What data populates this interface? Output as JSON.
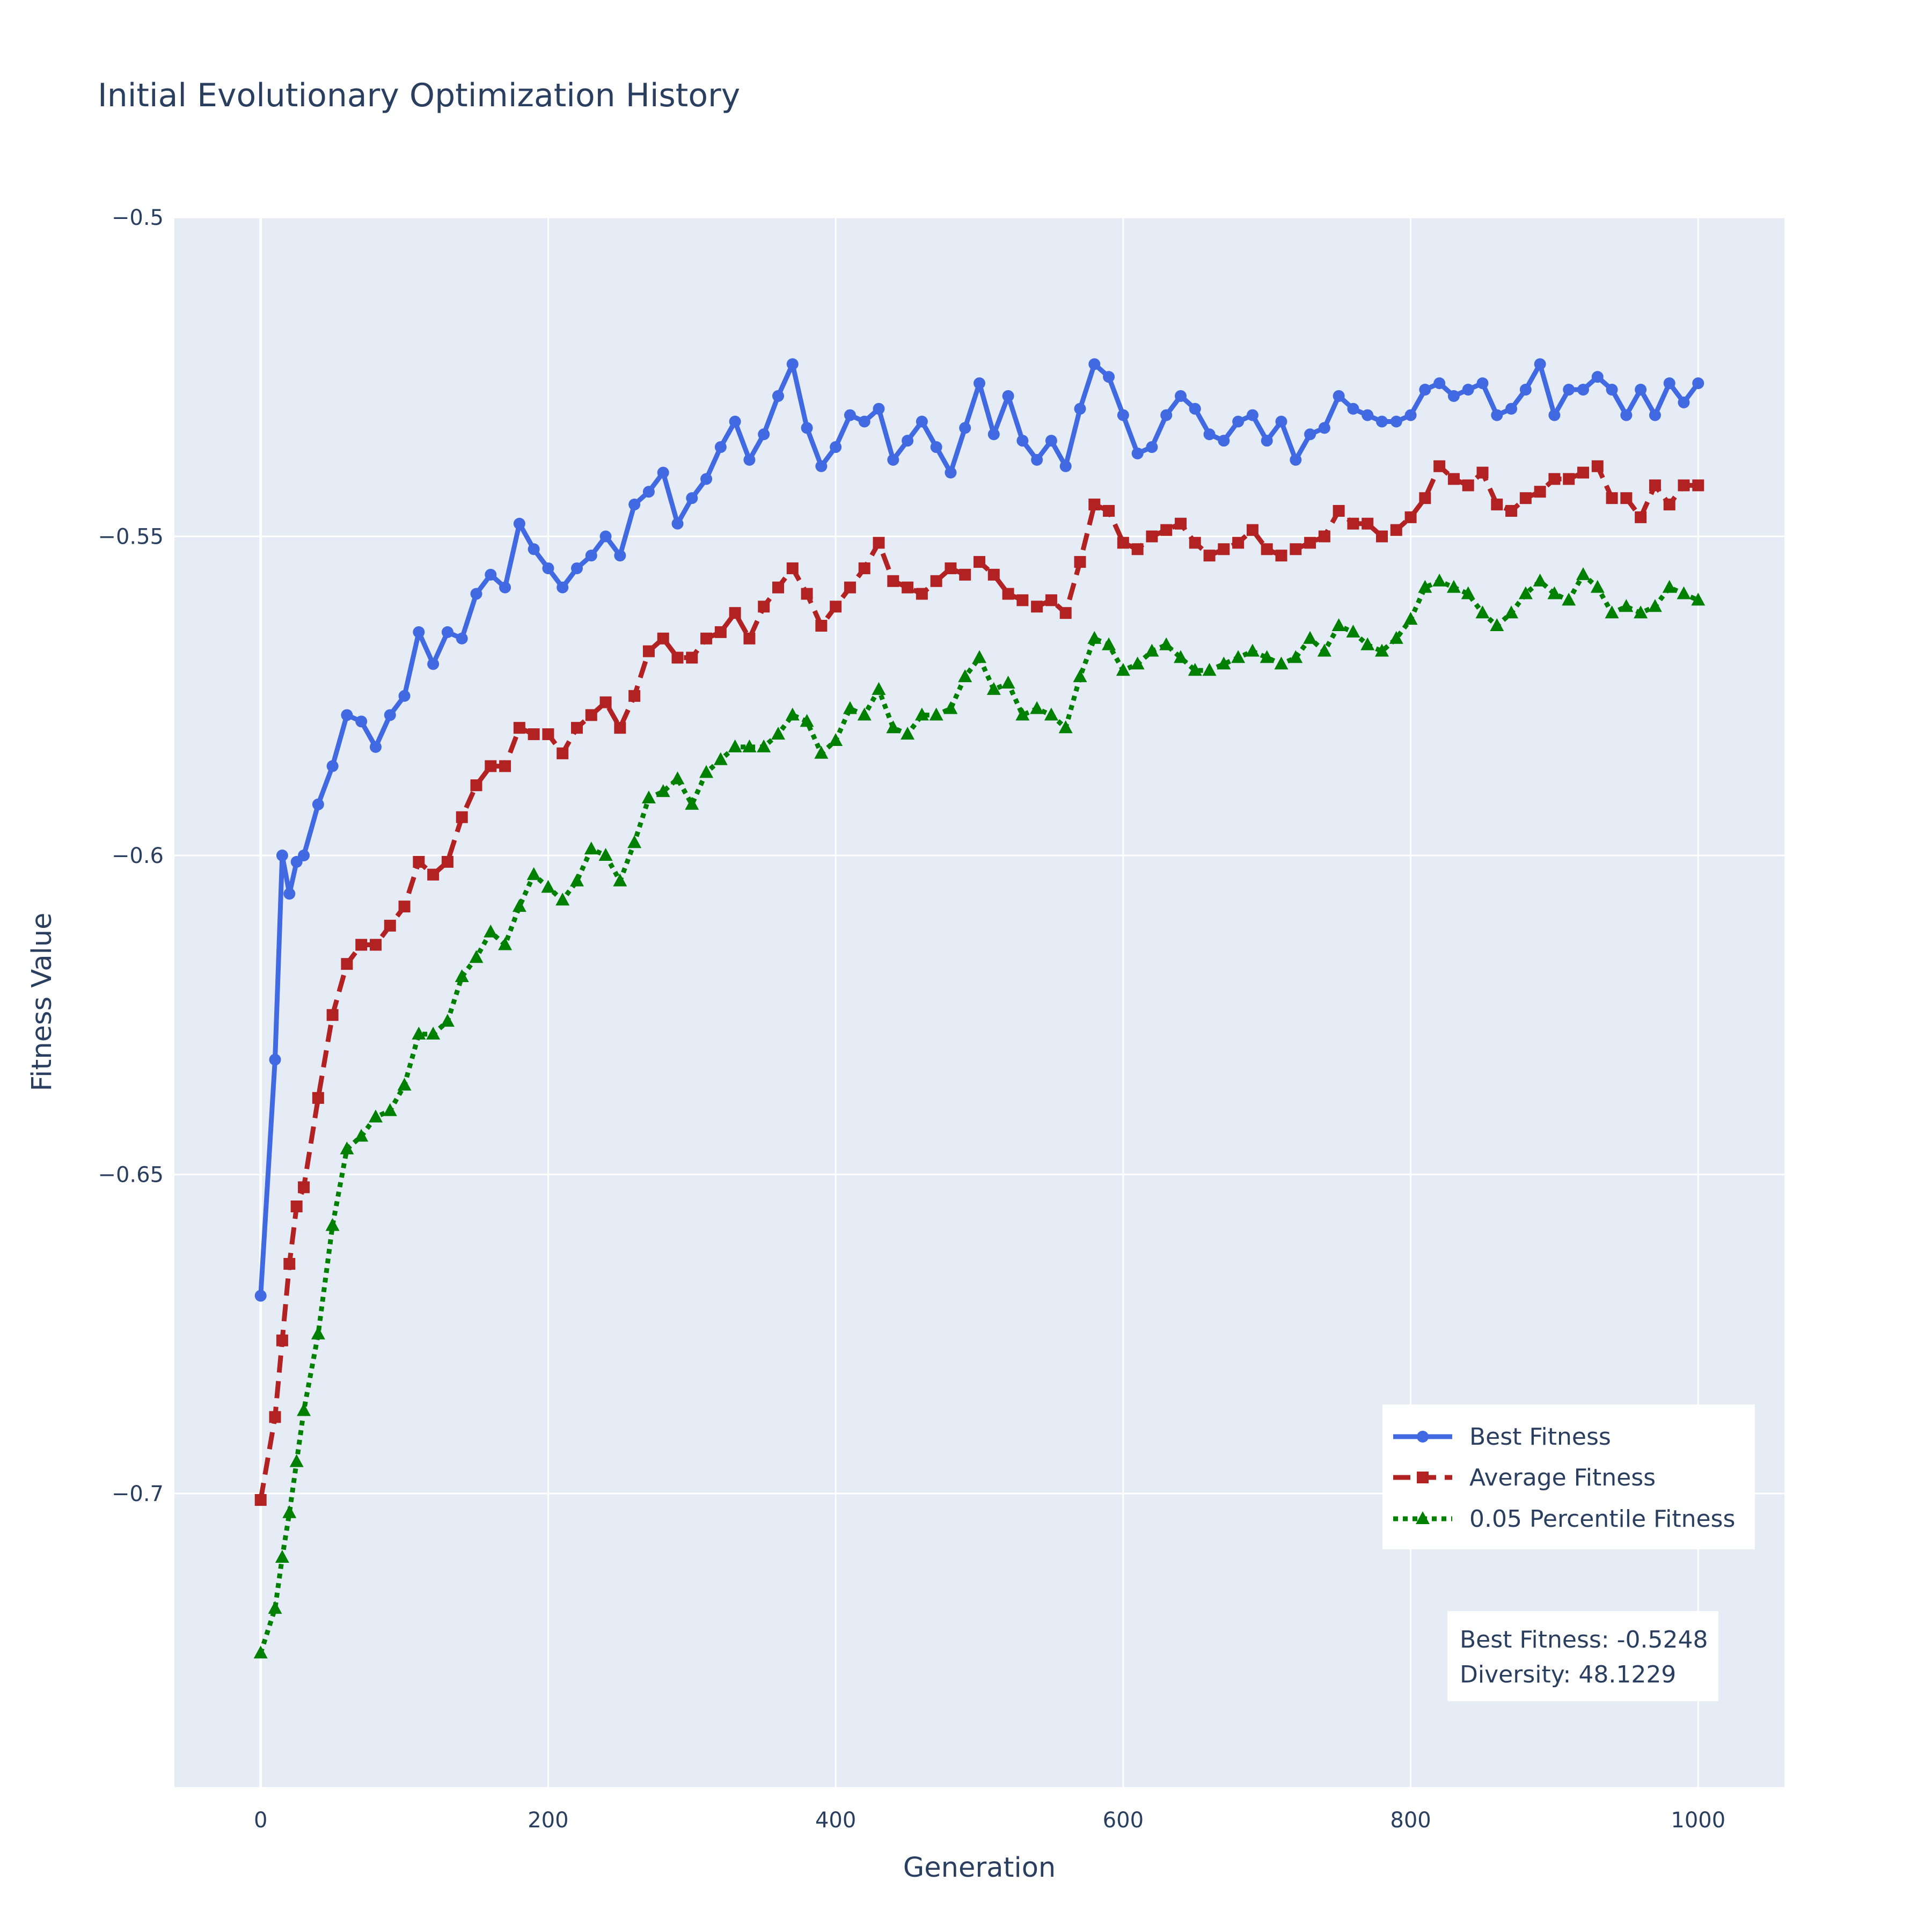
{
  "chart_data": {
    "type": "line",
    "title": "Initial Evolutionary Optimization History",
    "xlabel": "Generation",
    "ylabel": "Fitness Value",
    "xlim": [
      -60,
      1060
    ],
    "ylim": [
      -0.746,
      -0.5
    ],
    "x_ticks": [
      0,
      200,
      400,
      600,
      800,
      1000
    ],
    "x_tick_labels": [
      "0",
      "200",
      "400",
      "600",
      "800",
      "1000"
    ],
    "y_ticks": [
      -0.5,
      -0.55,
      -0.6,
      -0.65,
      -0.7
    ],
    "y_tick_labels": [
      "−0.5",
      "−0.55",
      "−0.6",
      "−0.65",
      "−0.7"
    ],
    "grid": true,
    "legend_position": "bottom-right",
    "series": [
      {
        "name": "Best Fitness",
        "color": "#4169e1",
        "line": "solid",
        "marker": "circle",
        "x": [
          0,
          10,
          15,
          20,
          25,
          30,
          40,
          50,
          60,
          70,
          80,
          90,
          100,
          110,
          120,
          130,
          140,
          150,
          160,
          170,
          180,
          190,
          200,
          210,
          220,
          230,
          240,
          250,
          260,
          270,
          280,
          290,
          300,
          310,
          320,
          330,
          340,
          350,
          360,
          370,
          380,
          390,
          400,
          410,
          420,
          430,
          440,
          450,
          460,
          470,
          480,
          490,
          500,
          510,
          520,
          530,
          540,
          550,
          560,
          570,
          580,
          590,
          600,
          610,
          620,
          630,
          640,
          650,
          660,
          670,
          680,
          690,
          700,
          710,
          720,
          730,
          740,
          750,
          760,
          770,
          780,
          790,
          800,
          810,
          820,
          830,
          840,
          850,
          860,
          870,
          880,
          890,
          900,
          910,
          920,
          930,
          940,
          950,
          960,
          970,
          980,
          990,
          1000
        ],
        "y": [
          -0.669,
          -0.632,
          -0.6,
          -0.606,
          -0.601,
          -0.6,
          -0.592,
          -0.586,
          -0.578,
          -0.579,
          -0.583,
          -0.578,
          -0.575,
          -0.565,
          -0.57,
          -0.565,
          -0.566,
          -0.559,
          -0.556,
          -0.558,
          -0.548,
          -0.552,
          -0.555,
          -0.558,
          -0.555,
          -0.553,
          -0.55,
          -0.553,
          -0.545,
          -0.543,
          -0.54,
          -0.548,
          -0.544,
          -0.541,
          -0.536,
          -0.532,
          -0.538,
          -0.534,
          -0.528,
          -0.523,
          -0.533,
          -0.539,
          -0.536,
          -0.531,
          -0.532,
          -0.53,
          -0.538,
          -0.535,
          -0.532,
          -0.536,
          -0.54,
          -0.533,
          -0.526,
          -0.534,
          -0.528,
          -0.535,
          -0.538,
          -0.535,
          -0.539,
          -0.53,
          -0.523,
          -0.525,
          -0.531,
          -0.537,
          -0.536,
          -0.531,
          -0.528,
          -0.53,
          -0.534,
          -0.535,
          -0.532,
          -0.531,
          -0.535,
          -0.532,
          -0.538,
          -0.534,
          -0.533,
          -0.528,
          -0.53,
          -0.531,
          -0.532,
          -0.532,
          -0.531,
          -0.527,
          -0.526,
          -0.528,
          -0.527,
          -0.526,
          -0.531,
          -0.53,
          -0.527,
          -0.523,
          -0.531,
          -0.527,
          -0.527,
          -0.525,
          -0.527,
          -0.531,
          -0.527,
          -0.531,
          -0.526,
          -0.529,
          -0.526
        ]
      },
      {
        "name": "Average Fitness",
        "color": "#b22222",
        "line": "dash",
        "marker": "square",
        "x": [
          0,
          10,
          15,
          20,
          25,
          30,
          40,
          50,
          60,
          70,
          80,
          90,
          100,
          110,
          120,
          130,
          140,
          150,
          160,
          170,
          180,
          190,
          200,
          210,
          220,
          230,
          240,
          250,
          260,
          270,
          280,
          290,
          300,
          310,
          320,
          330,
          340,
          350,
          360,
          370,
          380,
          390,
          400,
          410,
          420,
          430,
          440,
          450,
          460,
          470,
          480,
          490,
          500,
          510,
          520,
          530,
          540,
          550,
          560,
          570,
          580,
          590,
          600,
          610,
          620,
          630,
          640,
          650,
          660,
          670,
          680,
          690,
          700,
          710,
          720,
          730,
          740,
          750,
          760,
          770,
          780,
          790,
          800,
          810,
          820,
          830,
          840,
          850,
          860,
          870,
          880,
          890,
          900,
          910,
          920,
          930,
          940,
          950,
          960,
          970,
          980,
          990,
          1000
        ],
        "y": [
          -0.701,
          -0.688,
          -0.676,
          -0.664,
          -0.655,
          -0.652,
          -0.638,
          -0.625,
          -0.617,
          -0.614,
          -0.614,
          -0.611,
          -0.608,
          -0.601,
          -0.603,
          -0.601,
          -0.594,
          -0.589,
          -0.586,
          -0.586,
          -0.58,
          -0.581,
          -0.581,
          -0.584,
          -0.58,
          -0.578,
          -0.576,
          -0.58,
          -0.575,
          -0.568,
          -0.566,
          -0.569,
          -0.569,
          -0.566,
          -0.565,
          -0.562,
          -0.566,
          -0.561,
          -0.558,
          -0.555,
          -0.559,
          -0.564,
          -0.561,
          -0.558,
          -0.555,
          -0.551,
          -0.557,
          -0.558,
          -0.559,
          -0.557,
          -0.555,
          -0.556,
          -0.554,
          -0.556,
          -0.559,
          -0.56,
          -0.561,
          -0.56,
          -0.562,
          -0.554,
          -0.545,
          -0.546,
          -0.551,
          -0.552,
          -0.55,
          -0.549,
          -0.548,
          -0.551,
          -0.553,
          -0.552,
          -0.551,
          -0.549,
          -0.552,
          -0.553,
          -0.552,
          -0.551,
          -0.55,
          -0.546,
          -0.548,
          -0.548,
          -0.55,
          -0.549,
          -0.547,
          -0.544,
          -0.539,
          -0.541,
          -0.542,
          -0.54,
          -0.545,
          -0.546,
          -0.544,
          -0.543,
          -0.541,
          -0.541,
          -0.54,
          -0.539,
          -0.544,
          -0.544,
          -0.547,
          -0.542,
          -0.545,
          -0.542,
          -0.542
        ]
      },
      {
        "name": "0.05 Percentile Fitness",
        "color": "#008000",
        "line": "dot",
        "marker": "triangle-up",
        "x": [
          0,
          10,
          15,
          20,
          25,
          30,
          40,
          50,
          60,
          70,
          80,
          90,
          100,
          110,
          120,
          130,
          140,
          150,
          160,
          170,
          180,
          190,
          200,
          210,
          220,
          230,
          240,
          250,
          260,
          270,
          280,
          290,
          300,
          310,
          320,
          330,
          340,
          350,
          360,
          370,
          380,
          390,
          400,
          410,
          420,
          430,
          440,
          450,
          460,
          470,
          480,
          490,
          500,
          510,
          520,
          530,
          540,
          550,
          560,
          570,
          580,
          590,
          600,
          610,
          620,
          630,
          640,
          650,
          660,
          670,
          680,
          690,
          700,
          710,
          720,
          730,
          740,
          750,
          760,
          770,
          780,
          790,
          800,
          810,
          820,
          830,
          840,
          850,
          860,
          870,
          880,
          890,
          900,
          910,
          920,
          930,
          940,
          950,
          960,
          970,
          980,
          990,
          1000
        ],
        "y": [
          -0.725,
          -0.718,
          -0.71,
          -0.703,
          -0.695,
          -0.687,
          -0.675,
          -0.658,
          -0.646,
          -0.644,
          -0.641,
          -0.64,
          -0.636,
          -0.628,
          -0.628,
          -0.626,
          -0.619,
          -0.616,
          -0.612,
          -0.614,
          -0.608,
          -0.603,
          -0.605,
          -0.607,
          -0.604,
          -0.599,
          -0.6,
          -0.604,
          -0.598,
          -0.591,
          -0.59,
          -0.588,
          -0.592,
          -0.587,
          -0.585,
          -0.583,
          -0.583,
          -0.583,
          -0.581,
          -0.578,
          -0.579,
          -0.584,
          -0.582,
          -0.577,
          -0.578,
          -0.574,
          -0.58,
          -0.581,
          -0.578,
          -0.578,
          -0.577,
          -0.572,
          -0.569,
          -0.574,
          -0.573,
          -0.578,
          -0.577,
          -0.578,
          -0.58,
          -0.572,
          -0.566,
          -0.567,
          -0.571,
          -0.57,
          -0.568,
          -0.567,
          -0.569,
          -0.571,
          -0.571,
          -0.57,
          -0.569,
          -0.568,
          -0.569,
          -0.57,
          -0.569,
          -0.566,
          -0.568,
          -0.564,
          -0.565,
          -0.567,
          -0.568,
          -0.566,
          -0.563,
          -0.558,
          -0.557,
          -0.558,
          -0.559,
          -0.562,
          -0.564,
          -0.562,
          -0.559,
          -0.557,
          -0.559,
          -0.56,
          -0.556,
          -0.558,
          -0.562,
          -0.561,
          -0.562,
          -0.561,
          -0.558,
          -0.559,
          -0.56
        ]
      }
    ],
    "annotation": {
      "line1": "Best Fitness: -0.5248",
      "line2": "Diversity: 48.1229"
    }
  }
}
